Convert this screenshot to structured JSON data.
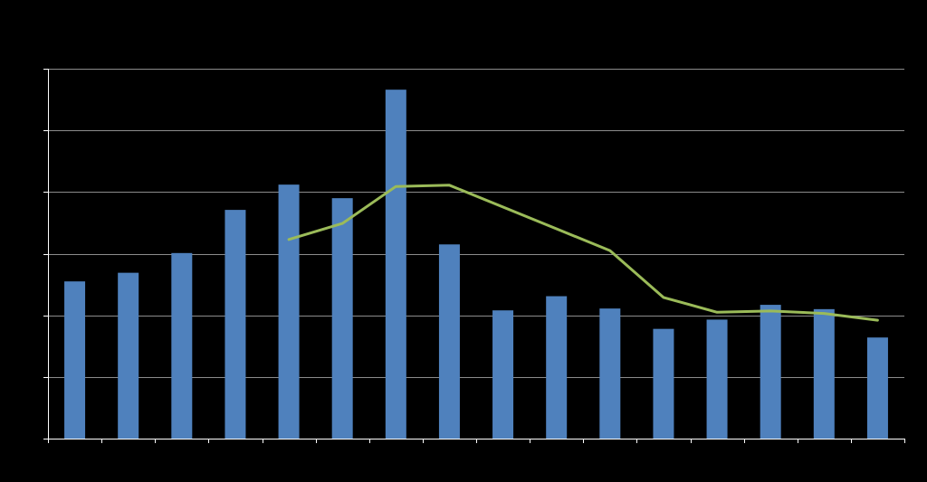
{
  "chart_data": {
    "type": "bar",
    "title": "",
    "xlabel": "",
    "ylabel": "",
    "ylim": [
      0,
      6
    ],
    "y_gridlines": [
      1,
      2,
      3,
      4,
      5,
      6
    ],
    "categories": [
      "",
      "",
      "",
      "",
      "",
      "",
      "",
      "",
      "",
      "",
      "",
      "",
      "",
      "",
      "",
      ""
    ],
    "series": [
      {
        "kind": "bar",
        "values": [
          2.55,
          2.69,
          3.01,
          3.71,
          4.12,
          3.9,
          5.66,
          3.15,
          2.08,
          2.31,
          2.11,
          1.78,
          1.93,
          2.17,
          2.1,
          1.64
        ]
      },
      {
        "kind": "line",
        "values": [
          null,
          null,
          null,
          null,
          3.23,
          3.49,
          4.09,
          4.11,
          null,
          null,
          3.05,
          2.29,
          2.05,
          2.07,
          2.03,
          1.92
        ]
      }
    ],
    "colors": {
      "bar": "#4f81bd",
      "line": "#9bbb59",
      "grid": "#8c8c8c",
      "axis": "#ffffff"
    },
    "grid": true,
    "legend": "none"
  }
}
